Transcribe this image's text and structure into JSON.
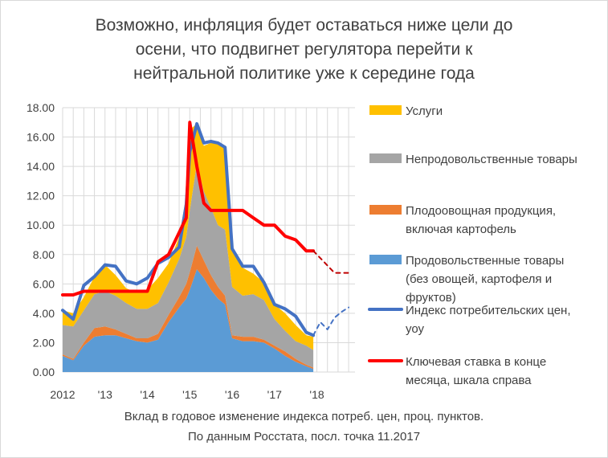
{
  "title_lines": [
    "Возможно, инфляция будет оставаться ниже цели до",
    "осени, что подвигнет регулятора перейти к",
    "нейтральной политике уже к середине года"
  ],
  "footnote_lines": [
    "Вклад в годовое изменение  индекса потреб. цен, проц. пунктов.",
    "По данным Росстата,  посл. точка 11.2017"
  ],
  "colors": {
    "services": "#FFC000",
    "nonfood": "#A5A5A5",
    "fruitveg": "#ED7D31",
    "food": "#5B9BD5",
    "cpi": "#4472C4",
    "keyrate": "#FF0000",
    "keyrate_forecast": "#C00000",
    "grid": "#D9D9D9",
    "text": "#404040"
  },
  "chart_data": {
    "type": "area",
    "title": "Возможно, инфляция будет оставаться ниже цели до осени, что подвигнет регулятора перейти к нейтральной политике уже к середине года",
    "x_labels": [
      "2012",
      "'13",
      "'14",
      "'15",
      "'16",
      "'17",
      "'18"
    ],
    "ylim": [
      0,
      18
    ],
    "y_ticks": [
      "0.00",
      "2.00",
      "4.00",
      "6.00",
      "8.00",
      "10.00",
      "12.00",
      "14.00",
      "16.00",
      "18.00"
    ],
    "grid": true,
    "legend_position": "right",
    "x": [
      2012.0,
      2012.25,
      2012.5,
      2012.75,
      2013.0,
      2013.25,
      2013.5,
      2013.75,
      2014.0,
      2014.25,
      2014.5,
      2014.75,
      2014.917,
      2015.0,
      2015.167,
      2015.333,
      2015.5,
      2015.667,
      2015.833,
      2016.0,
      2016.25,
      2016.5,
      2016.75,
      2017.0,
      2017.25,
      2017.5,
      2017.75,
      2017.917
    ],
    "stacked_series": [
      {
        "name": "Продовольственные товары\n(без овощей, картофеля и\nфруктов)",
        "values": [
          1.1,
          0.8,
          1.8,
          2.4,
          2.5,
          2.5,
          2.3,
          2.1,
          2.0,
          2.2,
          3.4,
          4.4,
          5.0,
          5.6,
          7.0,
          6.4,
          5.6,
          5.0,
          4.6,
          2.3,
          2.1,
          2.1,
          2.0,
          1.6,
          1.1,
          0.7,
          0.4,
          0.2
        ]
      },
      {
        "name": "Плодоовощная продукция,\nвключая картофель",
        "values": [
          0.1,
          0.1,
          0.2,
          0.6,
          0.6,
          0.4,
          0.3,
          0.2,
          0.3,
          0.4,
          0.5,
          0.7,
          1.0,
          1.2,
          1.6,
          1.2,
          1.0,
          0.8,
          0.6,
          0.2,
          0.3,
          0.3,
          0.2,
          0.2,
          0.3,
          0.2,
          0.1,
          0.1
        ]
      },
      {
        "name": "Непродовольственные товары",
        "values": [
          2.0,
          2.2,
          2.2,
          2.3,
          2.4,
          2.3,
          2.1,
          2.0,
          2.0,
          2.1,
          2.2,
          2.6,
          3.2,
          4.2,
          5.6,
          4.7,
          4.6,
          4.2,
          4.5,
          3.3,
          2.8,
          2.9,
          2.7,
          1.8,
          1.4,
          1.2,
          1.3,
          1.2
        ]
      },
      {
        "name": "Услуги",
        "values": [
          1.0,
          0.9,
          0.9,
          1.2,
          1.8,
          1.4,
          1.0,
          1.1,
          1.3,
          1.7,
          1.3,
          1.5,
          2.8,
          5.5,
          2.7,
          3.1,
          4.4,
          5.6,
          5.6,
          2.6,
          1.9,
          1.4,
          1.2,
          1.0,
          1.2,
          1.1,
          0.7,
          0.9
        ]
      }
    ],
    "line_series": [
      {
        "name": "Индекс потребительских цен,\nуоу",
        "values": [
          4.2,
          3.6,
          5.9,
          6.5,
          7.3,
          7.2,
          6.2,
          6.0,
          6.4,
          7.4,
          7.8,
          8.5,
          11.4,
          15.0,
          16.9,
          15.6,
          15.7,
          15.6,
          15.3,
          8.4,
          7.2,
          7.2,
          6.1,
          4.6,
          4.3,
          3.8,
          2.7,
          2.5
        ]
      },
      {
        "name": "Ключевая ставка в конце\nмесяца, шкала справа",
        "values": [
          5.25,
          5.25,
          5.5,
          5.5,
          5.5,
          5.5,
          5.5,
          5.5,
          5.5,
          7.5,
          8.0,
          9.5,
          10.5,
          17.0,
          14.0,
          11.5,
          11.0,
          11.0,
          11.0,
          11.0,
          11.0,
          10.5,
          10.0,
          10.0,
          9.25,
          9.0,
          8.25,
          8.25
        ]
      }
    ],
    "cpi_forecast": {
      "x": [
        2017.917,
        2018.083,
        2018.25,
        2018.417,
        2018.583,
        2018.75
      ],
      "values": [
        2.5,
        3.4,
        2.9,
        3.7,
        4.1,
        4.4
      ]
    },
    "keyrate_forecast": {
      "x": [
        2017.917,
        2018.083,
        2018.25,
        2018.417,
        2018.583,
        2018.75
      ],
      "values": [
        8.25,
        7.75,
        7.25,
        6.75,
        6.75,
        6.75
      ]
    },
    "legend": [
      {
        "key": "services",
        "text_lines": [
          "Услуги"
        ],
        "kind": "area"
      },
      {
        "key": "nonfood",
        "text_lines": [
          "Непродовольственные товары"
        ],
        "kind": "area"
      },
      {
        "key": "fruitveg",
        "text_lines": [
          "Плодоовощная продукция,",
          "включая картофель"
        ],
        "kind": "area"
      },
      {
        "key": "food",
        "text_lines": [
          "Продовольственные товары",
          "(без овощей, картофеля и",
          "фруктов)"
        ],
        "kind": "area"
      },
      {
        "key": "cpi",
        "text_lines": [
          "Индекс потребительских цен,",
          "уоу"
        ],
        "kind": "line"
      },
      {
        "key": "keyrate",
        "text_lines": [
          "Ключевая ставка в конце",
          "месяца, шкала справа"
        ],
        "kind": "line"
      }
    ]
  }
}
